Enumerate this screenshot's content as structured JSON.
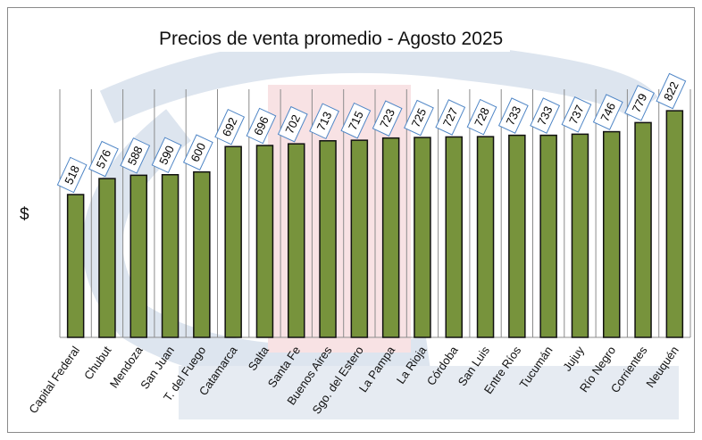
{
  "chart_data": {
    "type": "bar",
    "title": "Precios de venta promedio - Agosto 2025",
    "xlabel": "",
    "ylabel": "$",
    "ylim": [
      0,
      900
    ],
    "grid": "vertical category separators",
    "categories": [
      "Capital Federal",
      "Chubut",
      "Mendoza",
      "San Juan",
      "T. del Fuego",
      "Catamarca",
      "Salta",
      "Santa Fe",
      "Buenos Aires",
      "Sgo. del Estero",
      "La Pampa",
      "La Rioja",
      "Córdoba",
      "San Luis",
      "Entre Ríos",
      "Tucumán",
      "Jujuy",
      "Río Negro",
      "Corrientes",
      "Neuquén"
    ],
    "values": [
      518,
      576,
      588,
      590,
      600,
      692,
      696,
      702,
      713,
      715,
      723,
      725,
      727,
      728,
      733,
      733,
      737,
      746,
      779,
      822
    ],
    "colors": {
      "bar": "#77933c",
      "bar_border": "#111111",
      "label_border": "#4f86c6",
      "grid": "#8c8c8c"
    }
  }
}
